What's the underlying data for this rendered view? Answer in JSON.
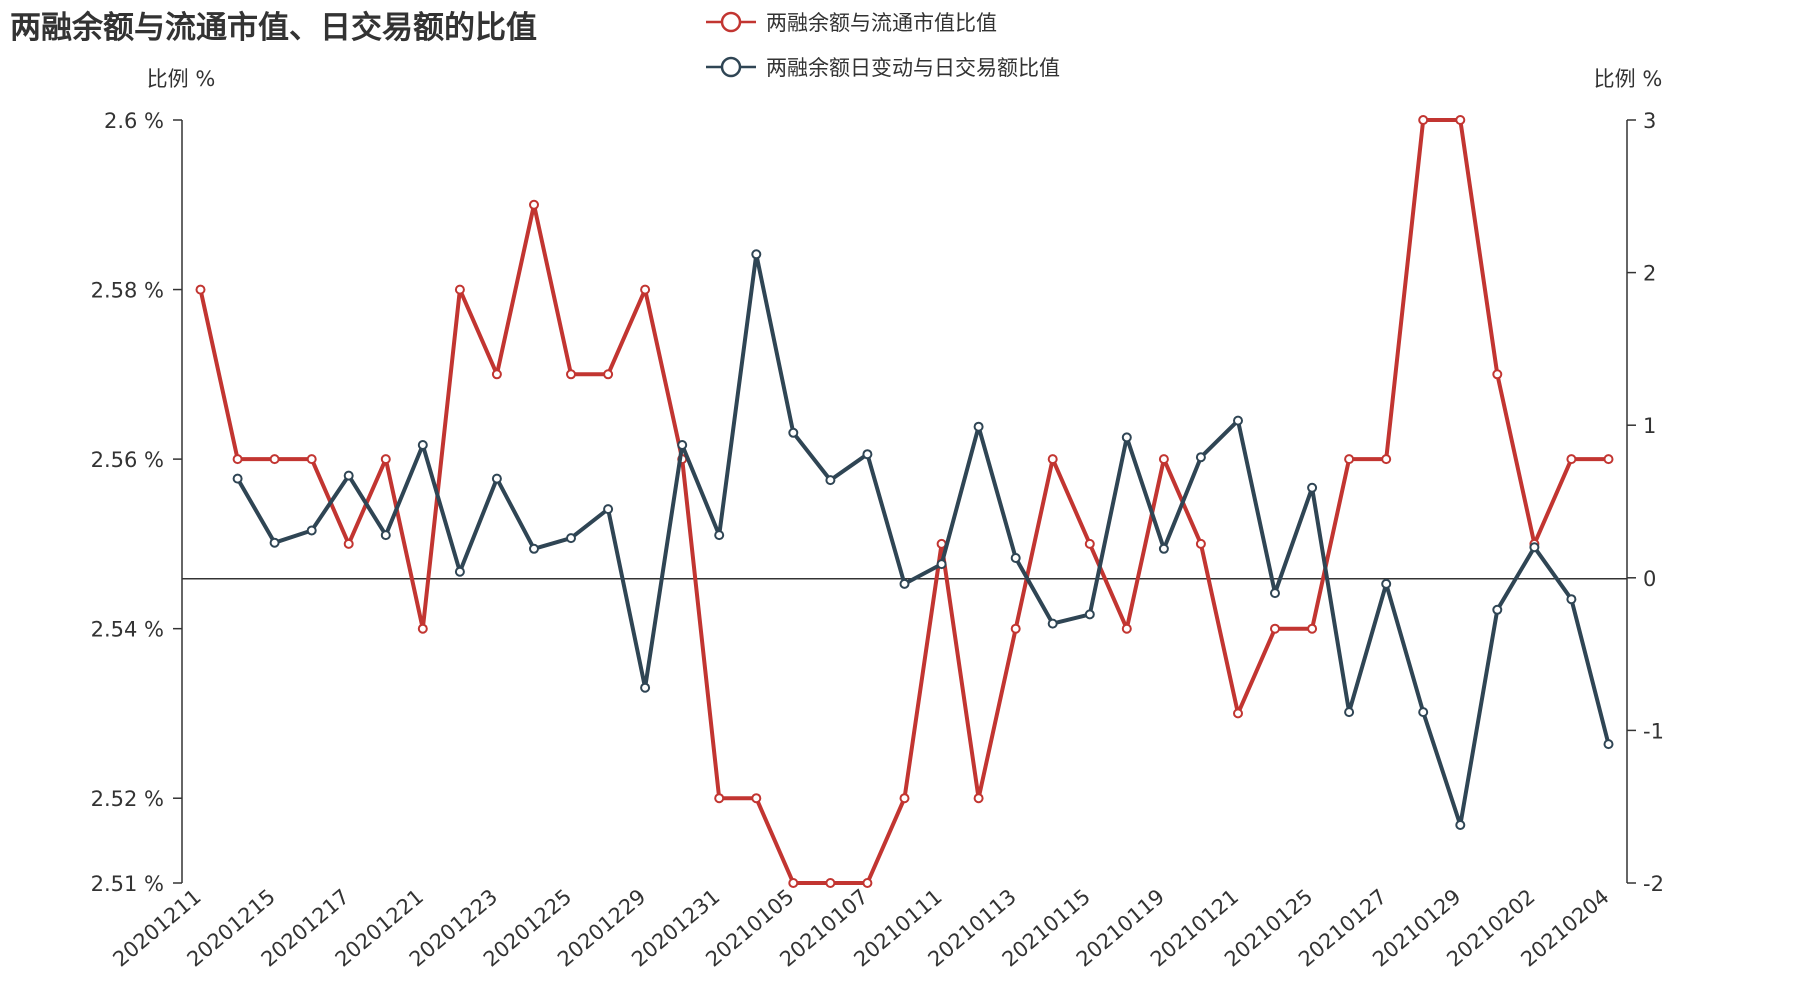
{
  "chart_data": {
    "type": "line",
    "title": "两融余额与流通市值、日交易额的比值",
    "left_axis": {
      "label": "比例 %",
      "min": 2.51,
      "max": 2.6,
      "ticks": [
        2.51,
        2.52,
        2.54,
        2.56,
        2.58,
        2.6
      ],
      "tick_labels": [
        "2.51 %",
        "2.52 %",
        "2.54 %",
        "2.56 %",
        "2.58 %",
        "2.6 %"
      ]
    },
    "right_axis": {
      "label": "比例 %",
      "min": -2,
      "max": 3,
      "ticks": [
        -2,
        -1,
        0,
        1,
        2,
        3
      ],
      "tick_labels": [
        "-2",
        "-1",
        "0",
        "1",
        "2",
        "3"
      ]
    },
    "x_tick_labels": [
      "20201211",
      "20201215",
      "20201217",
      "20201221",
      "20201223",
      "20201225",
      "20201229",
      "20201231",
      "20210105",
      "20210107",
      "20210111",
      "20210113",
      "20210115",
      "20210119",
      "20210121",
      "20210125",
      "20210127",
      "20210129",
      "20210202",
      "20210204"
    ],
    "point_count": 39,
    "series": [
      {
        "name": "两融余额与流通市值比值",
        "axis": "left",
        "color": "#c23531",
        "start_index": 0,
        "values": [
          2.58,
          2.56,
          2.56,
          2.56,
          2.55,
          2.56,
          2.54,
          2.58,
          2.57,
          2.59,
          2.57,
          2.57,
          2.58,
          2.56,
          2.52,
          2.52,
          2.51,
          2.51,
          2.51,
          2.52,
          2.55,
          2.52,
          2.54,
          2.56,
          2.55,
          2.54,
          2.56,
          2.55,
          2.53,
          2.54,
          2.54,
          2.56,
          2.56,
          2.6,
          2.6,
          2.57,
          2.55,
          2.56,
          2.56
        ]
      },
      {
        "name": "两融余额日变动与日交易额比值",
        "axis": "right",
        "color": "#2f4554",
        "start_index": 1,
        "values": [
          0.65,
          0.23,
          0.31,
          0.67,
          0.28,
          0.87,
          0.04,
          0.65,
          0.19,
          0.26,
          0.45,
          -0.72,
          0.87,
          0.28,
          2.12,
          0.95,
          0.64,
          0.81,
          -0.04,
          0.09,
          0.99,
          0.13,
          -0.3,
          -0.24,
          0.92,
          0.19,
          0.79,
          1.03,
          -0.1,
          0.59,
          -0.88,
          -0.04,
          -0.88,
          -1.62,
          -0.21,
          0.2,
          -0.14,
          -1.09
        ]
      }
    ],
    "legend": [
      {
        "label": "两融余额与流通市值比值",
        "color": "#c23531"
      },
      {
        "label": "两融余额日变动与日交易额比值",
        "color": "#2f4554"
      }
    ]
  }
}
